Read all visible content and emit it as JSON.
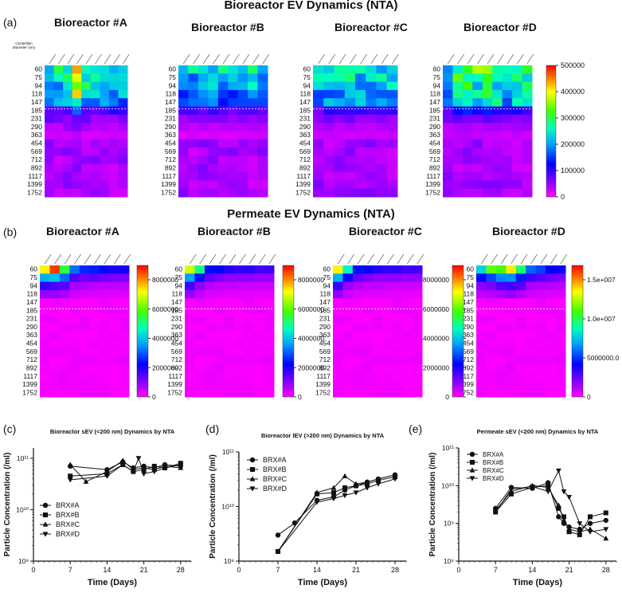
{
  "section_a_title": "Bioreactor EV Dynamics (NTA)",
  "section_b_title": "Permeate EV Dynamics (NTA)",
  "panel_letters": {
    "a": "(a)",
    "b": "(b)",
    "c": "(c)",
    "d": "(d)",
    "e": "(e)"
  },
  "size_header": "Center/Bin Diameter (nm)",
  "bins": [
    "60",
    "75",
    "94",
    "118",
    "147",
    "185",
    "231",
    "290",
    "363",
    "454",
    "569",
    "712",
    "892",
    "1117",
    "1399",
    "1752"
  ],
  "chart_data": [
    {
      "type": "heatmap",
      "group": "bioreactor",
      "colorbar_ticks": [
        "500000",
        "400000",
        "300000",
        "200000",
        "100000",
        "0"
      ],
      "colorbar_range": [
        0,
        500000
      ],
      "panels": [
        {
          "title": "Bioreactor #A",
          "ncols": 9,
          "peak": [
            0.55,
            0.5,
            0.6,
            0.85,
            0.55,
            0.5,
            0.45,
            0.5,
            0.5
          ]
        },
        {
          "title": "Bioreactor #B",
          "ncols": 9,
          "peak": [
            0.42,
            0.45,
            0.42,
            0.48,
            0.45,
            0.42,
            0.45,
            0.48,
            0.42
          ]
        },
        {
          "title": "Bioreactor #C",
          "ncols": 8,
          "peak": [
            0.45,
            0.5,
            0.48,
            0.52,
            0.5,
            0.5,
            0.48,
            0.5
          ]
        },
        {
          "title": "Bioreactor #D",
          "ncols": 9,
          "peak": [
            0.5,
            0.6,
            0.65,
            0.6,
            0.65,
            0.6,
            0.55,
            0.6,
            0.6
          ]
        }
      ]
    },
    {
      "type": "heatmap",
      "group": "permeate",
      "panels": [
        {
          "title": "Bioreactor #A",
          "ncols": 9,
          "peak": [
            0.95,
            0.85,
            0.7,
            0.35,
            0.3,
            0.28,
            0.25,
            0.25,
            0.25
          ],
          "colorbar_ticks": [
            "8000000",
            "6000000",
            "4000000",
            "2000000",
            "0"
          ]
        },
        {
          "title": "Bioreactor #B",
          "ncols": 9,
          "peak": [
            0.9,
            0.5,
            0.3,
            0.25,
            0.22,
            0.2,
            0.2,
            0.2,
            0.2
          ],
          "colorbar_ticks": [
            "8000000",
            "6000000",
            "4000000",
            "2000000",
            "0"
          ]
        },
        {
          "title": "Bioreactor #C",
          "ncols": 9,
          "peak": [
            0.95,
            0.45,
            0.3,
            0.25,
            0.22,
            0.2,
            0.2,
            0.2,
            0.2
          ],
          "colorbar_ticks": [
            "8000000",
            "6000000",
            "4000000",
            "2000000",
            "0"
          ]
        },
        {
          "title": "Bioreactor #D",
          "ncols": 9,
          "peak": [
            0.55,
            0.6,
            0.75,
            0.8,
            0.6,
            0.35,
            0.3,
            0.28,
            0.25
          ],
          "colorbar_ticks": [
            "1.5e+007",
            "1.0e+007",
            "5000000.0",
            "0"
          ]
        }
      ]
    },
    {
      "type": "line",
      "title": "Bioreactor sEV (<200 nm) Dynamics by NTA",
      "xlabel": "Time (Days)",
      "ylabel": "Particle Concentration (/ml)",
      "xlim": [
        0,
        30
      ],
      "xticks": [
        "0",
        "7",
        "14",
        "21",
        "28"
      ],
      "ylim_log": [
        9,
        11.2
      ],
      "yticks": [
        "10⁹",
        "10¹⁰",
        "10¹¹"
      ],
      "series": [
        {
          "name": "BRX#A",
          "marker": "circle",
          "x": [
            7,
            14,
            17,
            19,
            21,
            23,
            25,
            28
          ],
          "y": [
            70000000000.0,
            60000000000.0,
            85000000000.0,
            65000000000.0,
            70000000000.0,
            65000000000.0,
            75000000000.0,
            70000000000.0
          ]
        },
        {
          "name": "BRX#B",
          "marker": "square",
          "x": [
            7,
            14,
            17,
            19,
            21,
            23,
            25,
            28
          ],
          "y": [
            45000000000.0,
            50000000000.0,
            75000000000.0,
            55000000000.0,
            60000000000.0,
            70000000000.0,
            65000000000.0,
            80000000000.0
          ]
        },
        {
          "name": "BRX#C",
          "marker": "triangle-up",
          "x": [
            7,
            10,
            14,
            17,
            19,
            21,
            23,
            25,
            28
          ],
          "y": [
            75000000000.0,
            35000000000.0,
            55000000000.0,
            90000000000.0,
            60000000000.0,
            65000000000.0,
            60000000000.0,
            70000000000.0,
            65000000000.0
          ]
        },
        {
          "name": "BRX#D",
          "marker": "triangle-down",
          "x": [
            7,
            14,
            17,
            19,
            20,
            21,
            23,
            25,
            28
          ],
          "y": [
            38000000000.0,
            45000000000.0,
            75000000000.0,
            55000000000.0,
            100000000000.0,
            50000000000.0,
            55000000000.0,
            65000000000.0,
            75000000000.0
          ]
        }
      ]
    },
    {
      "type": "line",
      "title": "Bioreactor lEV (>200 nm) Dynamics by NTA",
      "xlabel": "Time (Days)",
      "ylabel": "Particle Concentration (/ml)",
      "xlim": [
        0,
        30
      ],
      "xticks": [
        "0",
        "7",
        "14",
        "21",
        "28"
      ],
      "ylim_log": [
        9,
        11
      ],
      "yticks": [
        "10⁹",
        "10¹⁰",
        "10¹¹"
      ],
      "series": [
        {
          "name": "BRX#A",
          "marker": "circle",
          "x": [
            7,
            10,
            14,
            17,
            19,
            21,
            23,
            25,
            28
          ],
          "y": [
            3000000000.0,
            5000000000.0,
            13000000000.0,
            15000000000.0,
            20000000000.0,
            24000000000.0,
            28000000000.0,
            32000000000.0,
            38000000000.0
          ]
        },
        {
          "name": "BRX#B",
          "marker": "square",
          "x": [
            7,
            14,
            17,
            19,
            21,
            23,
            25,
            28
          ],
          "y": [
            1500000000.0,
            17000000000.0,
            18000000000.0,
            22000000000.0,
            24000000000.0,
            26000000000.0,
            30000000000.0,
            35000000000.0
          ]
        },
        {
          "name": "BRX#C",
          "marker": "triangle-up",
          "x": [
            7,
            14,
            17,
            19,
            21,
            23,
            25,
            28
          ],
          "y": [
            1500000000.0,
            18000000000.0,
            22000000000.0,
            36000000000.0,
            26000000000.0,
            28000000000.0,
            32000000000.0,
            38000000000.0
          ]
        },
        {
          "name": "BRX#D",
          "marker": "triangle-down",
          "x": [
            7,
            14,
            17,
            19,
            21,
            23,
            25,
            28
          ],
          "y": [
            1500000000.0,
            12000000000.0,
            14000000000.0,
            16000000000.0,
            18000000000.0,
            22000000000.0,
            26000000000.0,
            32000000000.0
          ]
        }
      ]
    },
    {
      "type": "line",
      "title": "Permeate sEV (<200 nm) Dynamics by NTA",
      "xlabel": "Time (Days)",
      "ylabel": "Particle Concentration (/ml)",
      "xlim": [
        0,
        30
      ],
      "xticks": [
        "0",
        "7",
        "14",
        "21",
        "28"
      ],
      "ylim_log": [
        8,
        11
      ],
      "yticks": [
        "10⁸",
        "10⁹",
        "10¹⁰",
        "10¹¹"
      ],
      "series": [
        {
          "name": "BRX#A",
          "marker": "circle",
          "x": [
            7,
            10,
            14,
            17,
            19,
            20,
            21,
            23,
            25,
            28
          ],
          "y": [
            2500000000.0,
            9000000000.0,
            8500000000.0,
            12000000000.0,
            1500000000.0,
            1000000000.0,
            800000000.0,
            700000000.0,
            1000000000.0,
            1200000000.0
          ]
        },
        {
          "name": "BRX#B",
          "marker": "square",
          "x": [
            7,
            10,
            14,
            17,
            19,
            20,
            21,
            23,
            25,
            28
          ],
          "y": [
            2000000000.0,
            6000000000.0,
            9000000000.0,
            10000000000.0,
            2500000000.0,
            1500000000.0,
            600000000.0,
            500000000.0,
            1500000000.0,
            1900000000.0
          ]
        },
        {
          "name": "BRX#C",
          "marker": "triangle-up",
          "x": [
            7,
            10,
            14,
            17,
            19,
            20,
            21,
            23,
            25,
            28
          ],
          "y": [
            2200000000.0,
            7000000000.0,
            10000000000.0,
            9000000000.0,
            3000000000.0,
            1200000000.0,
            700000000.0,
            600000000.0,
            700000000.0,
            400000000.0
          ]
        },
        {
          "name": "BRX#D",
          "marker": "triangle-down",
          "x": [
            7,
            10,
            14,
            17,
            19,
            20,
            21,
            23,
            25,
            28
          ],
          "y": [
            2000000000.0,
            8000000000.0,
            9500000000.0,
            7000000000.0,
            25000000000.0,
            7000000000.0,
            5000000000.0,
            1000000000.0,
            600000000.0,
            700000000.0
          ]
        }
      ]
    }
  ]
}
